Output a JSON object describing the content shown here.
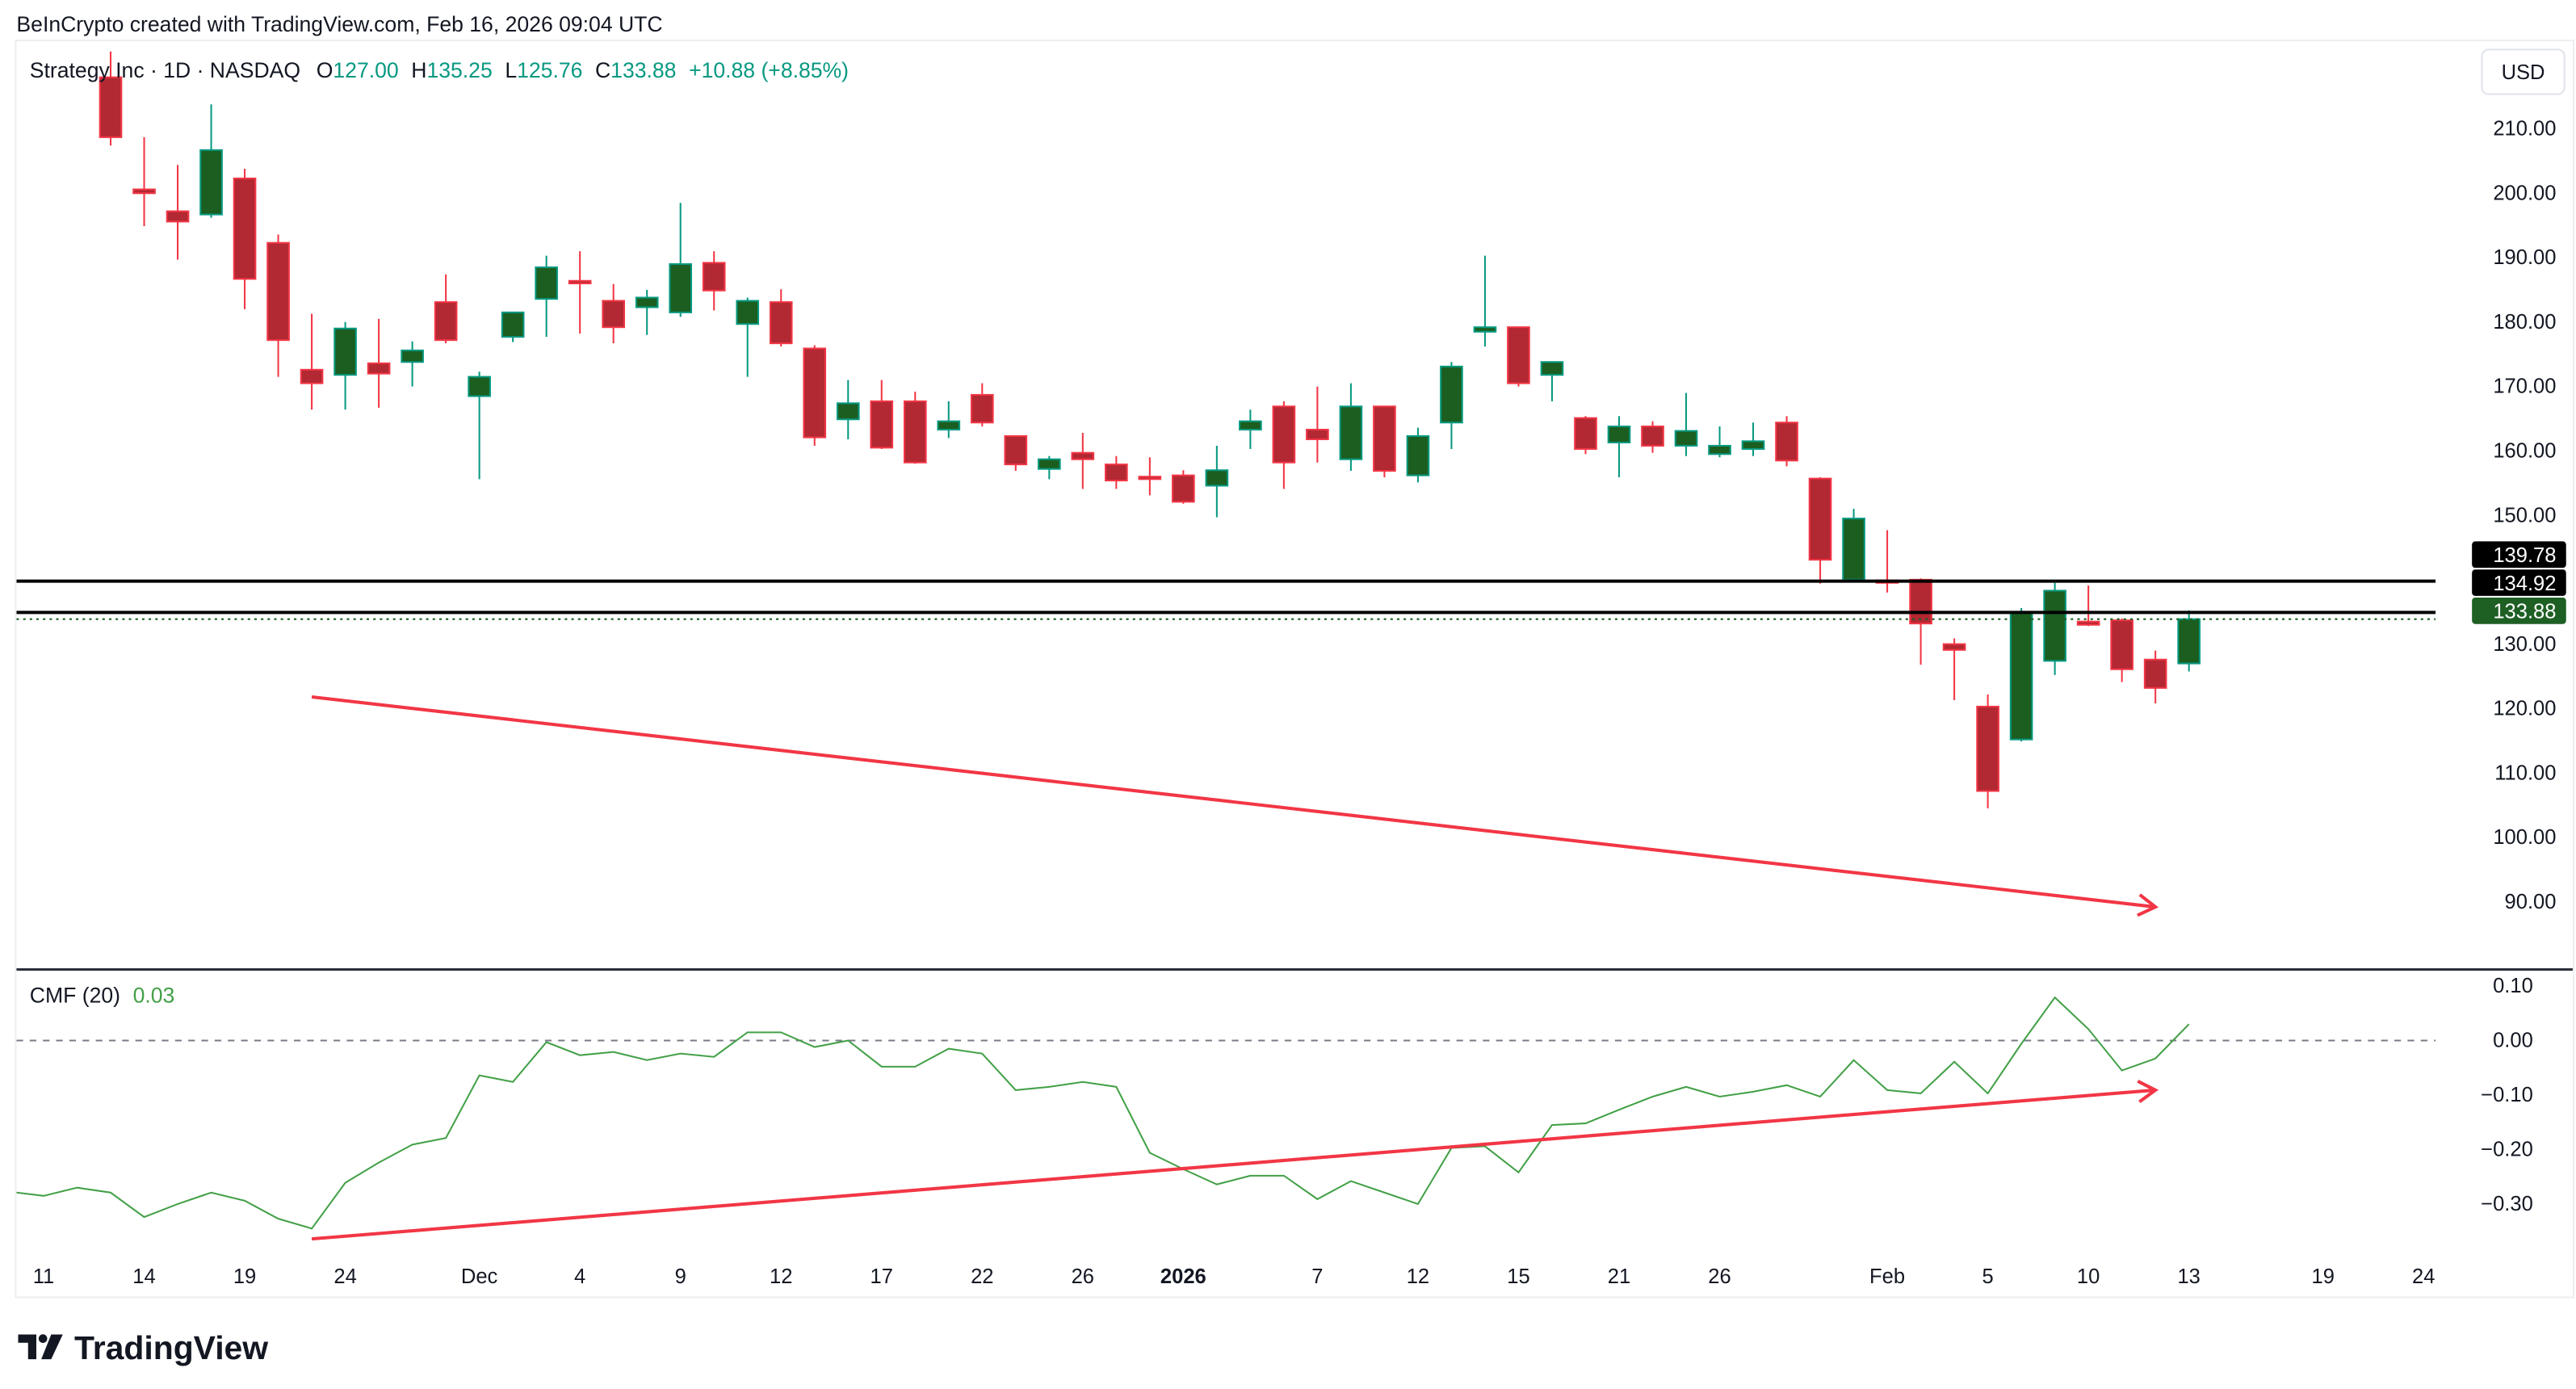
{
  "header": {
    "credit": "BeInCrypto created with TradingView.com, Feb 16, 2026 09:04 UTC"
  },
  "legend": {
    "symbol": "Strategy Inc · 1D · NASDAQ",
    "o_label": "O",
    "o": "127.00",
    "h_label": "H",
    "h": "135.25",
    "l_label": "L",
    "l": "125.76",
    "c_label": "C",
    "c": "133.88",
    "change": "+10.88 (+8.85%)"
  },
  "currency_button": "USD",
  "colors": {
    "up_body": "#1b5e20",
    "up_border": "#089981",
    "down_body": "#b22833",
    "down_border": "#f23645",
    "cmf": "#43a047",
    "trendline": "#f23645",
    "accent_green": "#089981"
  },
  "price_labels": [
    {
      "value": 139.78,
      "text": "139.78",
      "style": "black"
    },
    {
      "value": 134.92,
      "text": "134.92",
      "style": "black"
    },
    {
      "value": 133.88,
      "text": "133.88",
      "style": "green"
    }
  ],
  "cmf_legend": {
    "name": "CMF (20)",
    "value": "0.03"
  },
  "logo": {
    "text": "TradingView"
  },
  "chart_data": [
    {
      "type": "candlestick",
      "title": "Strategy Inc · 1D · NASDAQ",
      "ylim": [
        90,
        210
      ],
      "yticks": [
        "210.00",
        "200.00",
        "190.00",
        "180.00",
        "170.00",
        "160.00",
        "150.00",
        "140.00",
        "130.00",
        "120.00",
        "110.00",
        "100.00",
        "90.00"
      ],
      "ytick_values": [
        210,
        200,
        190,
        180,
        170,
        160,
        150,
        140,
        130,
        120,
        110,
        100,
        90
      ],
      "hidden_ticks": [
        "140.00"
      ],
      "ohlc": [
        [
          218,
          222,
          207.4,
          208.7
        ],
        [
          200.6,
          208.7,
          194.9,
          200.0
        ],
        [
          197.2,
          204.4,
          189.7,
          195.6
        ],
        [
          196.7,
          213.8,
          196.2,
          206.7
        ],
        [
          202.3,
          203.8,
          182,
          186.7
        ],
        [
          192.3,
          193.6,
          171.5,
          177.2
        ],
        [
          172.6,
          181.3,
          166.4,
          170.5
        ],
        [
          171.8,
          180,
          166.4,
          179
        ],
        [
          173.6,
          180.5,
          166.7,
          172
        ],
        [
          173.8,
          177,
          170,
          175.6
        ],
        [
          183.1,
          187.4,
          176.7,
          177.2
        ],
        [
          168.5,
          172.3,
          155.6,
          171.5
        ],
        [
          177.7,
          181.5,
          176.9,
          181.5
        ],
        [
          183.6,
          190.3,
          177.7,
          188.5
        ],
        [
          186.4,
          191,
          178.2,
          186.0
        ],
        [
          183.3,
          185.9,
          176.7,
          179.2
        ],
        [
          182.3,
          185,
          178,
          183.8
        ],
        [
          181.5,
          198.5,
          180.8,
          189
        ],
        [
          189.2,
          191,
          181.8,
          184.9
        ],
        [
          179.7,
          183.8,
          171.5,
          183.3
        ],
        [
          183.1,
          185.1,
          176.2,
          176.7
        ],
        [
          175.9,
          176.4,
          160.8,
          162.1
        ],
        [
          164.9,
          171,
          161.8,
          167.4
        ],
        [
          167.7,
          171,
          160.3,
          160.5
        ],
        [
          167.7,
          169.2,
          158,
          158.2
        ],
        [
          163.3,
          167.7,
          162,
          164.6
        ],
        [
          168.7,
          170.5,
          163.8,
          164.4
        ],
        [
          162.3,
          162.3,
          156.9,
          157.9
        ],
        [
          157.2,
          159.2,
          155.6,
          158.7
        ],
        [
          159.7,
          162.8,
          154.1,
          158.7
        ],
        [
          157.9,
          159.2,
          154.1,
          155.4
        ],
        [
          156.0,
          159,
          153.1,
          155.8
        ],
        [
          156.2,
          157,
          151.8,
          152.1
        ],
        [
          154.6,
          160.8,
          149.7,
          157
        ],
        [
          163.3,
          166.4,
          160.3,
          164.6
        ],
        [
          166.9,
          167.7,
          154.1,
          158.2
        ],
        [
          163.3,
          170,
          158.2,
          161.8
        ],
        [
          158.7,
          170.5,
          156.9,
          166.9
        ],
        [
          166.9,
          166.9,
          155.9,
          156.9
        ],
        [
          156.2,
          163.6,
          155.1,
          162.3
        ],
        [
          164.4,
          173.8,
          160.3,
          173.1
        ],
        [
          178.5,
          190.3,
          176.2,
          179.2
        ],
        [
          179.2,
          179.2,
          170,
          170.5
        ],
        [
          171.8,
          173.8,
          167.7,
          173.8
        ],
        [
          165.1,
          165.4,
          159.5,
          160.3
        ],
        [
          161.3,
          165.4,
          155.9,
          163.8
        ],
        [
          163.8,
          164.6,
          159.7,
          160.8
        ],
        [
          160.8,
          169,
          159.2,
          163.1
        ],
        [
          159.5,
          163.8,
          159,
          160.8
        ],
        [
          160.3,
          164.4,
          159.2,
          161.5
        ],
        [
          164.4,
          165.4,
          157.6,
          158.5
        ],
        [
          155.7,
          155.9,
          139.4,
          143.1
        ],
        [
          140.0,
          151,
          140,
          149.5
        ],
        [
          139.9,
          147.7,
          138,
          139.7
        ],
        [
          140.0,
          140.2,
          126.8,
          133.2
        ],
        [
          130.0,
          130.9,
          121.3,
          129.1
        ],
        [
          120.3,
          122.2,
          104.5,
          107.2
        ],
        [
          115.2,
          135.6,
          114.9,
          134.8
        ],
        [
          127.4,
          139.5,
          125.2,
          138.3
        ],
        [
          133.5,
          139.1,
          132.8,
          133.0
        ],
        [
          133.7,
          134,
          124.1,
          126.1
        ],
        [
          127.6,
          129.0,
          120.8,
          123.2
        ],
        [
          127,
          135.25,
          125.76,
          133.88
        ]
      ],
      "horizontal_lines": [
        139.78,
        134.92
      ],
      "last_price_line": 133.88,
      "trendline": {
        "from": {
          "bar": 6,
          "value": 121.8
        },
        "to": {
          "bar": 61,
          "value": 89.2
        },
        "arrow": true
      }
    },
    {
      "type": "line",
      "title": "CMF (20)",
      "ylim": [
        -0.35,
        0.12
      ],
      "yticks": [
        "0.10",
        "0.00",
        "−0.10",
        "−0.20",
        "−0.30"
      ],
      "ytick_values": [
        0.1,
        0,
        -0.1,
        -0.2,
        -0.3
      ],
      "start_bar": -3,
      "values": [
        -0.279,
        -0.285,
        -0.27,
        -0.279,
        -0.324,
        -0.3,
        -0.279,
        -0.294,
        -0.327,
        -0.345,
        -0.261,
        -0.224,
        -0.191,
        -0.179,
        -0.064,
        -0.076,
        -0.003,
        -0.027,
        -0.021,
        -0.036,
        -0.024,
        -0.03,
        0.015,
        0.015,
        -0.012,
        0.0,
        -0.048,
        -0.048,
        -0.015,
        -0.024,
        -0.091,
        -0.085,
        -0.076,
        -0.085,
        -0.206,
        -0.236,
        -0.264,
        -0.248,
        -0.248,
        -0.291,
        -0.258,
        -0.279,
        -0.3,
        -0.197,
        -0.194,
        -0.242,
        -0.155,
        -0.152,
        -0.127,
        -0.103,
        -0.085,
        -0.103,
        -0.094,
        -0.082,
        -0.103,
        -0.036,
        -0.091,
        -0.097,
        -0.039,
        -0.097,
        -0.006,
        0.079,
        0.021,
        -0.055,
        -0.033,
        0.03
      ],
      "zero_line": 0,
      "trendline": {
        "from": {
          "bar": 6,
          "value": -0.364
        },
        "to": {
          "bar": 61,
          "value": -0.091
        },
        "arrow": true
      }
    }
  ],
  "x_axis": {
    "labels": [
      {
        "bar": -2,
        "text": "11"
      },
      {
        "bar": 1,
        "text": "14"
      },
      {
        "bar": 4,
        "text": "19"
      },
      {
        "bar": 7,
        "text": "24"
      },
      {
        "bar": 11,
        "text": "Dec"
      },
      {
        "bar": 14,
        "text": "4"
      },
      {
        "bar": 17,
        "text": "9"
      },
      {
        "bar": 20,
        "text": "12"
      },
      {
        "bar": 23,
        "text": "17"
      },
      {
        "bar": 26,
        "text": "22"
      },
      {
        "bar": 29,
        "text": "26"
      },
      {
        "bar": 32,
        "text": "2026",
        "bold": true
      },
      {
        "bar": 36,
        "text": "7"
      },
      {
        "bar": 39,
        "text": "12"
      },
      {
        "bar": 42,
        "text": "15"
      },
      {
        "bar": 45,
        "text": "21"
      },
      {
        "bar": 48,
        "text": "26"
      },
      {
        "bar": 53,
        "text": "Feb"
      },
      {
        "bar": 56,
        "text": "5"
      },
      {
        "bar": 59,
        "text": "10"
      },
      {
        "bar": 62,
        "text": "13"
      },
      {
        "bar": 66,
        "text": "19"
      },
      {
        "bar": 69,
        "text": "24"
      }
    ]
  }
}
